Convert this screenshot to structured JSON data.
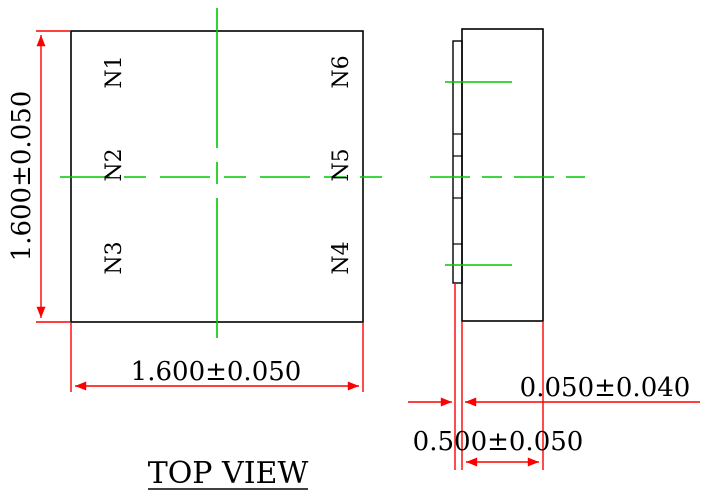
{
  "top_view": {
    "pads": [
      "N1",
      "N2",
      "N3",
      "N4",
      "N5",
      "N6"
    ],
    "dim_height": "1.600±0.050",
    "dim_width": "1.600±0.050",
    "title": "TOP VIEW"
  },
  "side_view": {
    "dim_pad_height": "0.050±0.040",
    "dim_thickness": "0.500±0.050"
  },
  "colors": {
    "outline": "#000000",
    "dimension": "#ff0000",
    "centerline": "#00c800"
  }
}
